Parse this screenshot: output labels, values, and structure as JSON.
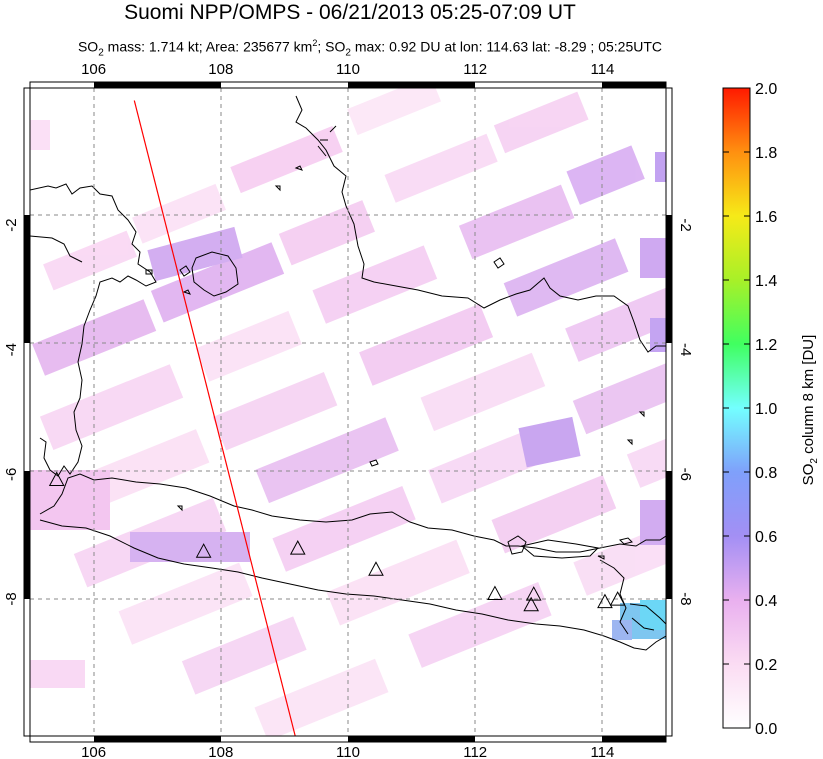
{
  "title": "Suomi NPP/OMPS - 06/21/2013 05:25-07:09 UT",
  "subtitle": {
    "so2_mass": "1.714 kt",
    "area": "235677 km",
    "so2_max": "0.92 DU",
    "lon": "114.63",
    "lat": "-8.29",
    "time": "05:25UTC"
  },
  "axes": {
    "lon_ticks": [
      "106",
      "108",
      "110",
      "112",
      "114"
    ],
    "lon_values": [
      106,
      108,
      110,
      112,
      114
    ],
    "lat_ticks": [
      "-2",
      "-4",
      "-6",
      "-8"
    ],
    "lat_values": [
      -2,
      -4,
      -6,
      -8
    ],
    "lon_range": [
      105,
      115
    ],
    "lat_range": [
      -10.2,
      0.2
    ],
    "grid": true
  },
  "colorbar": {
    "label": "SO2 column 8 km [DU]",
    "ticks": [
      "2.0",
      "1.8",
      "1.6",
      "1.4",
      "1.2",
      "1.0",
      "0.8",
      "0.6",
      "0.4",
      "0.2",
      "0.0"
    ],
    "range": [
      0,
      2.0
    ],
    "colors": [
      "#ffffff",
      "#f9c9f0",
      "#c8a0f0",
      "#8080f8",
      "#70ffff",
      "#40ff40",
      "#f0f020",
      "#ff8000",
      "#ff0000"
    ]
  },
  "volcanoes": [
    {
      "lon": 105.42,
      "lat": -6.1
    },
    {
      "lon": 107.73,
      "lat": -7.25
    },
    {
      "lon": 109.21,
      "lat": -7.2
    },
    {
      "lon": 110.44,
      "lat": -7.54
    },
    {
      "lon": 112.31,
      "lat": -7.93
    },
    {
      "lon": 112.92,
      "lat": -7.94
    },
    {
      "lon": 112.88,
      "lat": -8.11
    },
    {
      "lon": 114.04,
      "lat": -8.06
    },
    {
      "lon": 114.24,
      "lat": -8.02
    }
  ],
  "track_line": {
    "color": "#ff0000",
    "start": {
      "lon": 106.64,
      "lat": 0.0
    },
    "end": {
      "lon": 109.17,
      "lat": -10.2
    }
  },
  "chart_data": {
    "type": "heatmap",
    "title": "Suomi NPP/OMPS - 06/21/2013 05:25-07:09 UT",
    "xlabel": "",
    "ylabel": "",
    "colorbar_label": "SO2 column 8 km [DU]",
    "zlim": [
      0,
      2.0
    ],
    "xlim": [
      105,
      115
    ],
    "ylim": [
      -10.2,
      0.2
    ],
    "max_value": {
      "value": 0.92,
      "lon": 114.63,
      "lat": -8.29
    },
    "pixels": [
      {
        "lon": 114.4,
        "lat": -8.3,
        "value": 0.92
      },
      {
        "lon": 114.9,
        "lat": -8.3,
        "value": 0.85
      },
      {
        "lon": 112.9,
        "lat": -5.8,
        "value": 0.45
      },
      {
        "lon": 112.6,
        "lat": -5.2,
        "value": 0.35
      },
      {
        "lon": 114.9,
        "lat": -7.2,
        "value": 0.4
      },
      {
        "lon": 114.9,
        "lat": -3.9,
        "value": 0.4
      },
      {
        "lon": 108.5,
        "lat": -2.7,
        "value": 0.35
      },
      {
        "lon": 106.9,
        "lat": -2.6,
        "value": 0.35
      },
      {
        "lon": 109.6,
        "lat": -2.7,
        "value": 0.3
      },
      {
        "lon": 107.9,
        "lat": -3.3,
        "value": 0.3
      },
      {
        "lon": 106.3,
        "lat": -2.8,
        "value": 0.3
      },
      {
        "lon": 107.6,
        "lat": -7.2,
        "value": 0.35
      },
      {
        "lon": 106.2,
        "lat": -7.0,
        "value": 0.3
      },
      {
        "lon": 112.9,
        "lat": -4.8,
        "value": 0.3
      },
      {
        "lon": 114.9,
        "lat": -6.9,
        "value": 0.3
      },
      {
        "lon": 112.0,
        "lat": -2.6,
        "value": 0.25
      },
      {
        "lon": 110.0,
        "lat": -6.7,
        "value": 0.25
      }
    ]
  }
}
